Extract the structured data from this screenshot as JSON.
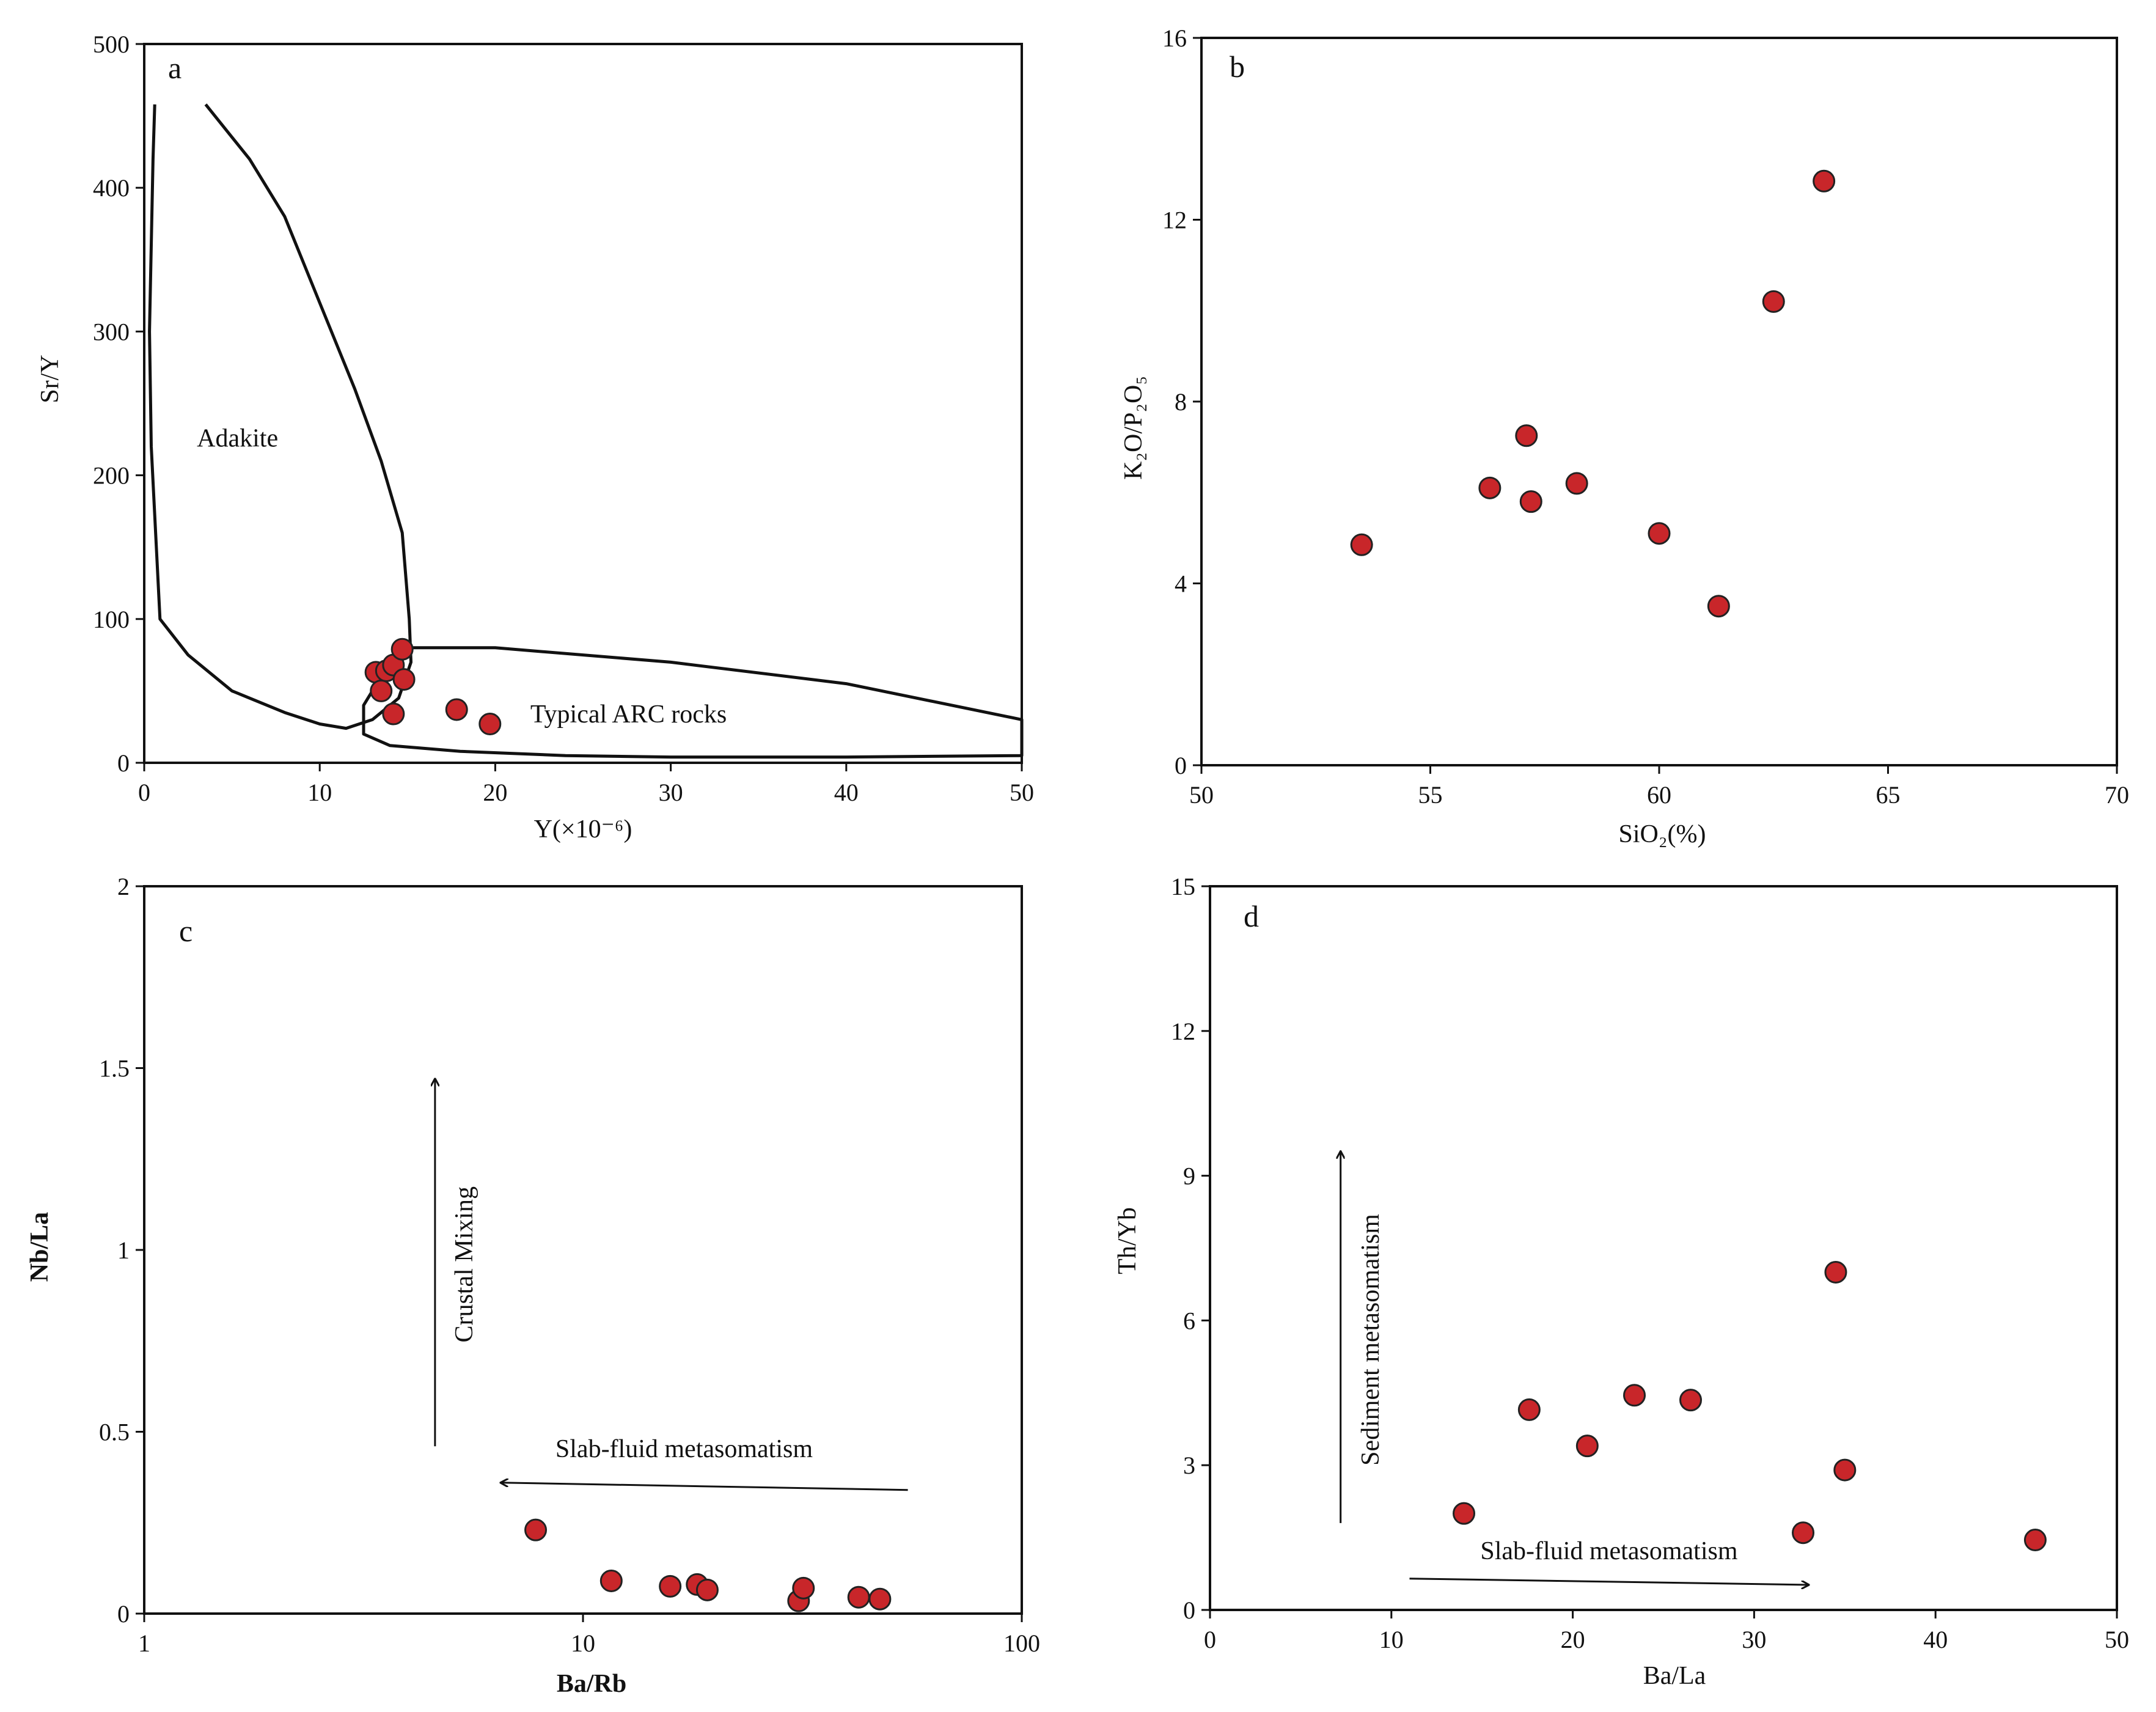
{
  "chart_data": [
    {
      "id": "a",
      "type": "scatter",
      "panel_label": "a",
      "xlabel": "Y(×10⁻⁶)",
      "ylabel": "Sr/Y",
      "xlim": [
        0,
        50
      ],
      "ylim": [
        0,
        500
      ],
      "xscale": "linear",
      "xticks": [
        0,
        10,
        20,
        30,
        40,
        50
      ],
      "yticks": [
        0,
        100,
        200,
        300,
        400,
        500
      ],
      "xtick_labels": [
        "0",
        "10",
        "20",
        "30",
        "40",
        "50"
      ],
      "ytick_labels": [
        "0",
        "100",
        "200",
        "300",
        "400",
        "500"
      ],
      "points": [
        {
          "x": 13.2,
          "y": 63
        },
        {
          "x": 13.5,
          "y": 50
        },
        {
          "x": 13.8,
          "y": 64
        },
        {
          "x": 14.2,
          "y": 68
        },
        {
          "x": 14.7,
          "y": 79
        },
        {
          "x": 14.8,
          "y": 58
        },
        {
          "x": 14.2,
          "y": 34
        },
        {
          "x": 17.8,
          "y": 37
        },
        {
          "x": 19.7,
          "y": 27
        }
      ],
      "fields": [
        {
          "name": "Adakite",
          "label": "Adakite",
          "label_at": [
            3,
            220
          ],
          "boundary": [
            [
              0.6,
              458
            ],
            [
              0.5,
              420
            ],
            [
              0.3,
              300
            ],
            [
              0.4,
              220
            ],
            [
              0.9,
              100
            ],
            [
              2.5,
              75
            ],
            [
              5,
              50
            ],
            [
              8,
              35
            ],
            [
              10,
              27
            ],
            [
              11.5,
              24
            ],
            [
              13,
              30
            ],
            [
              14.5,
              45
            ],
            [
              15.2,
              70
            ],
            [
              15.1,
              100
            ],
            [
              14.7,
              160
            ],
            [
              13.5,
              210
            ],
            [
              12,
              260
            ],
            [
              10,
              320
            ],
            [
              8,
              380
            ],
            [
              6,
              420
            ],
            [
              3.5,
              458
            ]
          ]
        },
        {
          "name": "Typical ARC rocks",
          "label": "Typical ARC rocks",
          "label_at": [
            22,
            28
          ],
          "boundary": [
            [
              14.5,
              80
            ],
            [
              20,
              80
            ],
            [
              30,
              70
            ],
            [
              40,
              55
            ],
            [
              50,
              30
            ],
            [
              50,
              5
            ],
            [
              40,
              4
            ],
            [
              30,
              4
            ],
            [
              24,
              5
            ],
            [
              18,
              8
            ],
            [
              14,
              12
            ],
            [
              12.5,
              20
            ],
            [
              12.5,
              40
            ],
            [
              13.5,
              60
            ]
          ]
        }
      ]
    },
    {
      "id": "b",
      "type": "scatter",
      "panel_label": "b",
      "xlabel": "SiO₂(%)",
      "ylabel": "K₂O/P₂O₅",
      "xlim": [
        50,
        70
      ],
      "ylim": [
        0,
        16
      ],
      "xscale": "linear",
      "xticks": [
        50,
        55,
        60,
        65,
        70
      ],
      "yticks": [
        0,
        4,
        8,
        12,
        16
      ],
      "xtick_labels": [
        "50",
        "55",
        "60",
        "65",
        "70"
      ],
      "ytick_labels": [
        "0",
        "4",
        "8",
        "12",
        "16"
      ],
      "points": [
        {
          "x": 53.5,
          "y": 4.85
        },
        {
          "x": 56.3,
          "y": 6.1
        },
        {
          "x": 57.1,
          "y": 7.25
        },
        {
          "x": 57.2,
          "y": 5.8
        },
        {
          "x": 58.2,
          "y": 6.2
        },
        {
          "x": 60.0,
          "y": 5.1
        },
        {
          "x": 61.3,
          "y": 3.5
        },
        {
          "x": 62.5,
          "y": 10.2
        },
        {
          "x": 63.6,
          "y": 12.85
        }
      ]
    },
    {
      "id": "c",
      "type": "scatter",
      "panel_label": "c",
      "xlabel": "Ba/Rb",
      "ylabel": "Nb/La",
      "xlim": [
        1,
        100
      ],
      "ylim": [
        0,
        2
      ],
      "xscale": "log",
      "xticks": [
        1,
        10,
        100
      ],
      "yticks": [
        0,
        0.5,
        1,
        1.5,
        2
      ],
      "xtick_labels": [
        "1",
        "10",
        "100"
      ],
      "ytick_labels": [
        "0",
        "0.5",
        "1",
        "1.5",
        "2"
      ],
      "points": [
        {
          "x": 7.8,
          "y": 0.23
        },
        {
          "x": 11.6,
          "y": 0.09
        },
        {
          "x": 15.8,
          "y": 0.075
        },
        {
          "x": 18.2,
          "y": 0.08
        },
        {
          "x": 19.2,
          "y": 0.065
        },
        {
          "x": 31.0,
          "y": 0.035
        },
        {
          "x": 31.8,
          "y": 0.07
        },
        {
          "x": 42.5,
          "y": 0.045
        },
        {
          "x": 47.5,
          "y": 0.04
        }
      ],
      "annotations": [
        {
          "text": "Crustal Mixing",
          "from": [
            4.6,
            0.46
          ],
          "to": [
            4.6,
            1.47
          ],
          "text_at": [
            5.6,
            0.96
          ],
          "vertical": true
        },
        {
          "text": "Slab-fluid metasomatism",
          "from": [
            55,
            0.34
          ],
          "to": [
            6.5,
            0.36
          ],
          "text_at": [
            17,
            0.43
          ],
          "vertical": false
        }
      ]
    },
    {
      "id": "d",
      "type": "scatter",
      "panel_label": "d",
      "xlabel": "Ba/La",
      "ylabel": "Th/Yb",
      "xlim": [
        0,
        50
      ],
      "ylim": [
        0,
        15
      ],
      "xscale": "linear",
      "xticks": [
        0,
        10,
        20,
        30,
        40,
        50
      ],
      "yticks": [
        0,
        3,
        6,
        9,
        12,
        15
      ],
      "xtick_labels": [
        "0",
        "10",
        "20",
        "30",
        "40",
        "50"
      ],
      "ytick_labels": [
        "0",
        "3",
        "6",
        "9",
        "12",
        "15"
      ],
      "points": [
        {
          "x": 14.0,
          "y": 2.0
        },
        {
          "x": 17.6,
          "y": 4.15
        },
        {
          "x": 20.8,
          "y": 3.4
        },
        {
          "x": 23.4,
          "y": 4.45
        },
        {
          "x": 26.5,
          "y": 4.35
        },
        {
          "x": 32.7,
          "y": 1.6
        },
        {
          "x": 34.5,
          "y": 7.0
        },
        {
          "x": 35.0,
          "y": 2.9
        },
        {
          "x": 45.5,
          "y": 1.45
        }
      ],
      "annotations": [
        {
          "text": "Sediment metasomatism",
          "from": [
            7.2,
            1.8
          ],
          "to": [
            7.2,
            9.5
          ],
          "text_at": [
            9.3,
            5.6
          ],
          "vertical": true
        },
        {
          "text": "Slab-fluid metasomatism",
          "from": [
            11,
            0.65
          ],
          "to": [
            33,
            0.52
          ],
          "text_at": [
            22,
            1.05
          ],
          "vertical": false
        }
      ]
    }
  ]
}
